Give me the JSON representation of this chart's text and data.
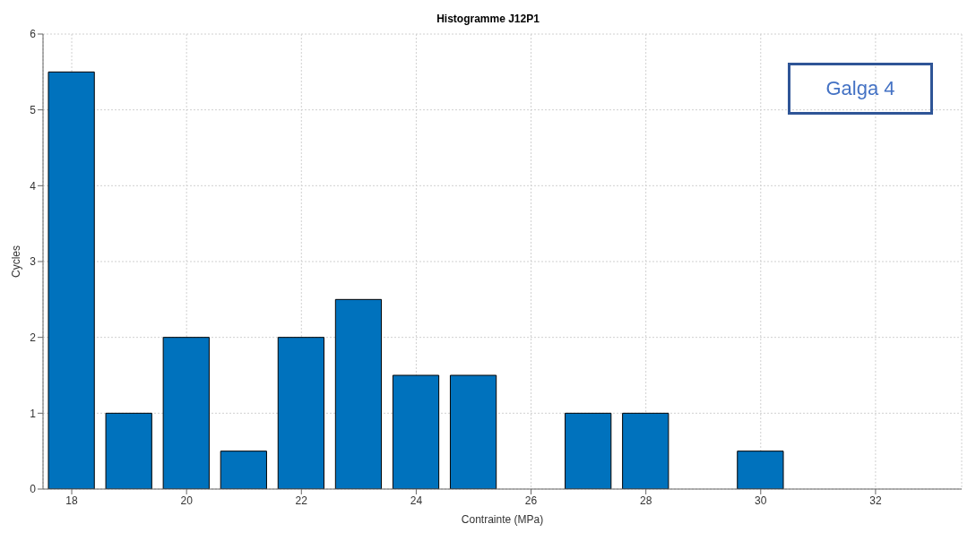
{
  "chart_data": {
    "type": "bar",
    "title": "Histogramme J12P1",
    "xlabel": "Contrainte (MPa)",
    "ylabel": "Cycles",
    "x": [
      18,
      19,
      20,
      21,
      22,
      23,
      24,
      25,
      26,
      27,
      28,
      29,
      30
    ],
    "values": [
      5.5,
      1,
      2,
      0.5,
      2,
      2.5,
      1.5,
      1.5,
      0,
      1,
      1,
      0,
      0.5
    ],
    "color": "#0072bd",
    "xlim": [
      17.5,
      33.5
    ],
    "xticks": [
      18,
      20,
      22,
      24,
      26,
      28,
      30,
      32
    ],
    "ylim": [
      0,
      6
    ],
    "yticks": [
      0,
      1,
      2,
      3,
      4,
      5,
      6
    ],
    "grid": true,
    "annotations": [
      "Galga 4"
    ]
  }
}
